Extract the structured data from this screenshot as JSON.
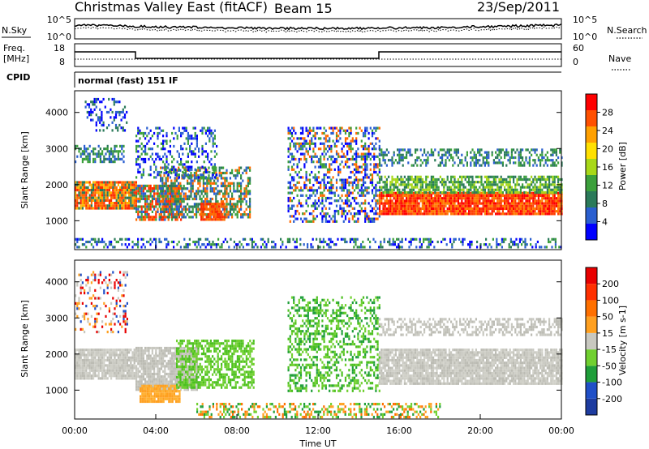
{
  "header": {
    "title": "Christmas Valley East (fitACF)",
    "beam": "Beam 15",
    "date": "23/Sep/2011"
  },
  "top_panels": {
    "nsky_label": "N.Sky",
    "nsky_ticks": [
      "10^5",
      "10^0"
    ],
    "nsearch_label": "N.Search",
    "nsearch_ticks": [
      "10^5",
      "10^0"
    ],
    "freq_label": "Freq.",
    "freq_unit": "[MHz]",
    "freq_ticks": [
      "18",
      "8"
    ],
    "nave_label": "Nave",
    "nave_ticks": [
      "60",
      "0"
    ],
    "cpid_label": "CPID",
    "cpid_text": "normal (fast) 151 IF"
  },
  "chart_data": [
    {
      "type": "heatmap",
      "name": "Power",
      "ylabel": "Slant Range [km]",
      "yticks": [
        "1000",
        "2000",
        "3000",
        "4000"
      ],
      "ylim": [
        200,
        4600
      ],
      "colorbar_label": "Power [dB]",
      "colorbar_ticks": [
        "4",
        "8",
        "12",
        "16",
        "20",
        "24",
        "28"
      ],
      "colorbar_colors": [
        "#0000ff",
        "#2a5fd0",
        "#2b7a5a",
        "#3ca03c",
        "#a8d818",
        "#ffe000",
        "#ffa000",
        "#ff5000",
        "#ff0000"
      ],
      "blobs": [
        {
          "t0": 0.0,
          "t1": 3.0,
          "r0": 1350,
          "r1": 2100,
          "d": 0.92,
          "col": [
            "#ff2a00",
            "#ff6a00",
            "#ffb400",
            "#2b7a5a"
          ]
        },
        {
          "t0": 0.0,
          "t1": 2.4,
          "r0": 2650,
          "r1": 3100,
          "d": 0.5,
          "col": [
            "#2a5fd0",
            "#2b7a5a",
            "#3ca03c"
          ]
        },
        {
          "t0": 0.5,
          "t1": 2.6,
          "r0": 3500,
          "r1": 4400,
          "d": 0.3,
          "col": [
            "#0000ff",
            "#2a5fd0",
            "#2b7a5a"
          ]
        },
        {
          "t0": 3.0,
          "t1": 5.2,
          "r0": 1050,
          "r1": 2000,
          "d": 0.78,
          "col": [
            "#ff2a00",
            "#ff6a00",
            "#3ca03c",
            "#2a5fd0"
          ]
        },
        {
          "t0": 4.2,
          "t1": 8.6,
          "r0": 1100,
          "r1": 2500,
          "d": 0.6,
          "col": [
            "#2a5fd0",
            "#2b7a5a",
            "#3ca03c",
            "#ff6a00"
          ]
        },
        {
          "t0": 6.2,
          "t1": 7.4,
          "r0": 1000,
          "r1": 1500,
          "d": 0.8,
          "col": [
            "#ff2a00",
            "#ff6a00"
          ]
        },
        {
          "t0": 3.0,
          "t1": 7.0,
          "r0": 2200,
          "r1": 3600,
          "d": 0.3,
          "col": [
            "#0000ff",
            "#2a5fd0",
            "#3ca03c"
          ]
        },
        {
          "t0": 10.5,
          "t1": 15.0,
          "r0": 1000,
          "r1": 3600,
          "d": 0.42,
          "col": [
            "#0000ff",
            "#2a5fd0",
            "#3ca03c",
            "#ff6a00"
          ]
        },
        {
          "t0": 15.0,
          "t1": 24.0,
          "r0": 1200,
          "r1": 1800,
          "d": 0.95,
          "col": [
            "#ff0000",
            "#ff3c00",
            "#ff7a00"
          ]
        },
        {
          "t0": 15.0,
          "t1": 24.0,
          "r0": 1800,
          "r1": 2250,
          "d": 0.7,
          "col": [
            "#2b7a5a",
            "#3ca03c",
            "#a8d818"
          ]
        },
        {
          "t0": 15.0,
          "t1": 24.0,
          "r0": 2550,
          "r1": 3000,
          "d": 0.45,
          "col": [
            "#2a5fd0",
            "#2b7a5a",
            "#3ca03c"
          ]
        },
        {
          "t0": 0.0,
          "t1": 24.0,
          "r0": 250,
          "r1": 520,
          "d": 0.35,
          "col": [
            "#0000ff",
            "#2a5fd0",
            "#2b7a5a",
            "#3ca03c"
          ]
        }
      ]
    },
    {
      "type": "heatmap",
      "name": "Velocity",
      "ylabel": "Slant Range [km]",
      "yticks": [
        "1000",
        "2000",
        "3000",
        "4000"
      ],
      "ylim": [
        200,
        4600
      ],
      "xlabel": "Time UT",
      "xticks": [
        "00:00",
        "04:00",
        "08:00",
        "12:00",
        "16:00",
        "20:00",
        "00:00"
      ],
      "xlim": [
        0,
        24
      ],
      "colorbar_label": "Velocity [m s-1]",
      "colorbar_ticks": [
        "200",
        "100",
        "50",
        "15",
        "-15",
        "-50",
        "-100",
        "-200"
      ],
      "colorbar_colors": [
        "#1e3ca0",
        "#2050c8",
        "#1f9e3a",
        "#70d030",
        "#c8c8c0",
        "#ffa020",
        "#ff7000",
        "#ff3000",
        "#e80000"
      ],
      "blobs": [
        {
          "t0": 0.0,
          "t1": 3.0,
          "r0": 1300,
          "r1": 2150,
          "d": 0.92,
          "col": [
            "#c8c8c0",
            "#bcbcb4",
            "#d0d0c8"
          ]
        },
        {
          "t0": 3.0,
          "t1": 6.0,
          "r0": 1050,
          "r1": 2200,
          "d": 0.85,
          "col": [
            "#c8c8c0",
            "#bcbcb4"
          ]
        },
        {
          "t0": 3.2,
          "t1": 5.2,
          "r0": 700,
          "r1": 1150,
          "d": 0.85,
          "col": [
            "#ffa020",
            "#ffb030"
          ]
        },
        {
          "t0": 5.0,
          "t1": 8.8,
          "r0": 1100,
          "r1": 2400,
          "d": 0.6,
          "col": [
            "#70d030",
            "#4cc020"
          ]
        },
        {
          "t0": 10.5,
          "t1": 15.0,
          "r0": 1000,
          "r1": 3600,
          "d": 0.4,
          "col": [
            "#70d030",
            "#4cc020",
            "#1f9e3a"
          ]
        },
        {
          "t0": 15.0,
          "t1": 24.0,
          "r0": 1150,
          "r1": 2150,
          "d": 0.9,
          "col": [
            "#c8c8c0",
            "#bcbcb4",
            "#d0d0c8"
          ]
        },
        {
          "t0": 15.0,
          "t1": 24.0,
          "r0": 2550,
          "r1": 3000,
          "d": 0.5,
          "col": [
            "#c8c8c0",
            "#bcbcb4"
          ]
        },
        {
          "t0": 0.0,
          "t1": 2.6,
          "r0": 2600,
          "r1": 4300,
          "d": 0.25,
          "col": [
            "#c8c8c0",
            "#ffa020",
            "#2050c8",
            "#e80000"
          ]
        },
        {
          "t0": 6.0,
          "t1": 18.0,
          "r0": 250,
          "r1": 650,
          "d": 0.4,
          "col": [
            "#70d030",
            "#ffa020",
            "#ff7000",
            "#1f9e3a"
          ]
        }
      ]
    }
  ]
}
